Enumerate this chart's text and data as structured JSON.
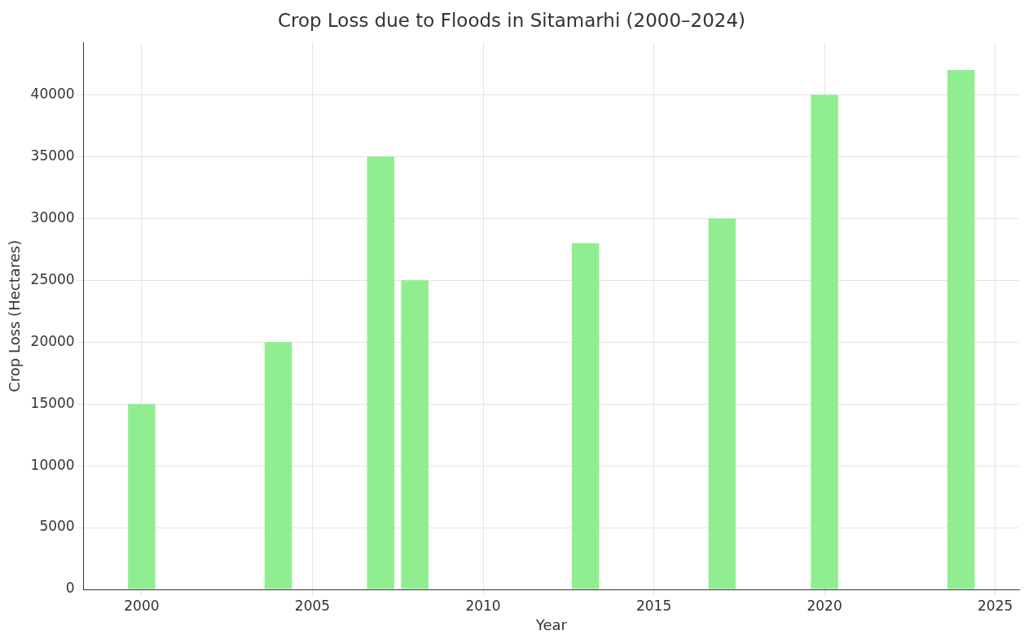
{
  "chart_data": {
    "type": "bar",
    "title": "Crop Loss due to Floods in Sitamarhi (2000–2024)",
    "xlabel": "Year",
    "ylabel": "Crop Loss (Hectares)",
    "x": [
      2000,
      2004,
      2007,
      2008,
      2013,
      2017,
      2020,
      2024
    ],
    "values": [
      15000,
      20000,
      35000,
      25000,
      28000,
      30000,
      40000,
      42000
    ],
    "color": "#90ee90",
    "xlim": [
      1998.3,
      2025.7
    ],
    "xticks": [
      2000,
      2005,
      2010,
      2015,
      2020,
      2025
    ],
    "ylim": [
      0,
      44200
    ],
    "yticks": [
      0,
      5000,
      10000,
      15000,
      20000,
      25000,
      30000,
      35000,
      40000
    ],
    "grid": true,
    "legend": false
  }
}
